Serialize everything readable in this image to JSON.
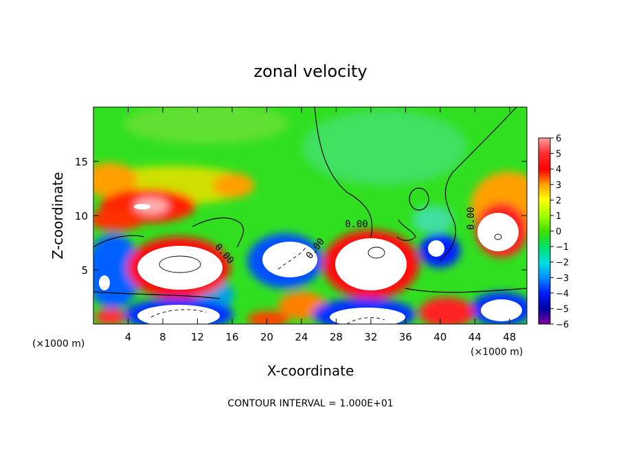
{
  "chart_data": {
    "type": "heatmap",
    "title": "zonal velocity",
    "xlabel": "X-coordinate",
    "ylabel": "Z-coordinate",
    "x_unit": "(×1000 m)",
    "x_unit_right": "(×1000 m)",
    "xlim": [
      0,
      50
    ],
    "ylim": [
      0,
      20
    ],
    "x_ticks": [
      "4",
      "8",
      "12",
      "16",
      "20",
      "24",
      "28",
      "32",
      "36",
      "40",
      "44",
      "48"
    ],
    "y_ticks": [
      "5",
      "10",
      "15"
    ],
    "colorbar": {
      "min": -6,
      "max": 6,
      "labels": [
        "6",
        "5",
        "4",
        "3",
        "2",
        "1",
        "0",
        "−1",
        "−2",
        "−3",
        "−4",
        "−5",
        "−6"
      ]
    },
    "contour_label": "0.00",
    "footer": "CONTOUR INTERVAL = 1.000E+01"
  }
}
